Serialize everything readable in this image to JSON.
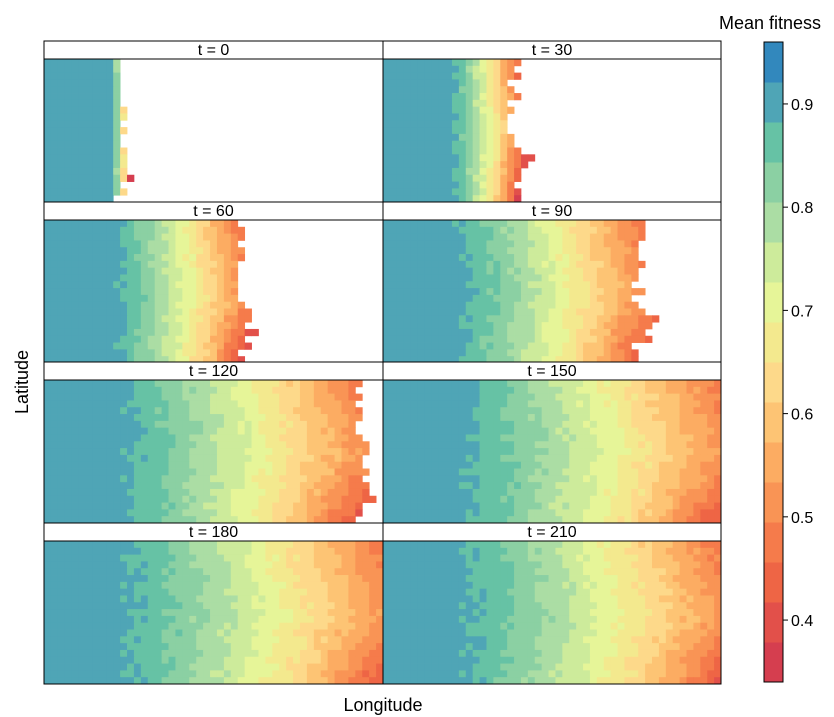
{
  "chart_data": {
    "type": "heatmap",
    "title": "",
    "xlabel": "Longitude",
    "ylabel": "Latitude",
    "colorbar": {
      "label": "Mean fitness",
      "range": [
        0.34,
        0.96
      ],
      "ticks": [
        0.4,
        0.5,
        0.6,
        0.7,
        0.8,
        0.9
      ],
      "tick_labels": [
        "0.4",
        "0.5",
        "0.6",
        "0.7",
        "0.8",
        "0.9"
      ],
      "palette": [
        "#d53e4f",
        "#e2504a",
        "#ee6545",
        "#f57b4b",
        "#f99455",
        "#fcac62",
        "#fdc474",
        "#fdd98a",
        "#f3e98e",
        "#e6f598",
        "#cdeb9b",
        "#abdda4",
        "#8bd0a3",
        "#66c2a5",
        "#4fa5b6",
        "#3288bd"
      ]
    },
    "grid_cols": 49,
    "grid_rows": 21,
    "panels": [
      {
        "label": "t = 0",
        "t": 0,
        "front_fraction": 0.22
      },
      {
        "label": "t = 30",
        "t": 30,
        "front_fraction": 0.39
      },
      {
        "label": "t = 60",
        "t": 60,
        "front_fraction": 0.58
      },
      {
        "label": "t = 90",
        "t": 90,
        "front_fraction": 0.76
      },
      {
        "label": "t = 120",
        "t": 120,
        "front_fraction": 0.93
      },
      {
        "label": "t = 150",
        "t": 150,
        "front_fraction": 1.0
      },
      {
        "label": "t = 180",
        "t": 180,
        "front_fraction": 1.0
      },
      {
        "label": "t = 210",
        "t": 210,
        "front_fraction": 1.0
      }
    ]
  }
}
